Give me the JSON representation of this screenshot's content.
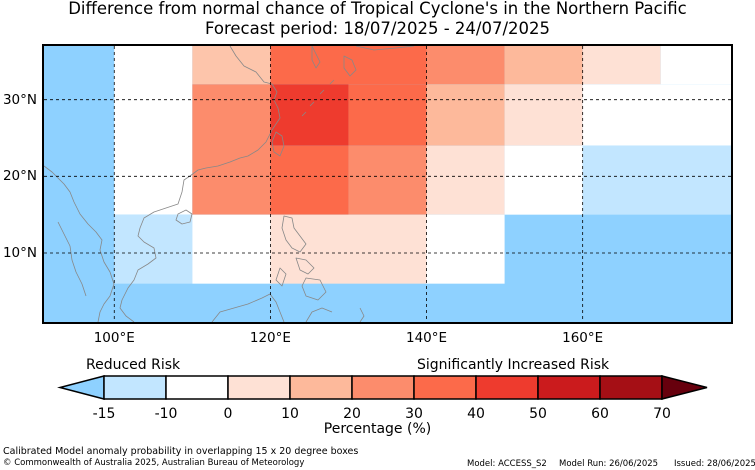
{
  "header": {
    "title": "Difference from normal chance of Tropical Cyclone's in the Northern Pacific",
    "subtitle": "Forecast period: 18/07/2025 - 24/07/2025"
  },
  "map": {
    "region": "Northern Pacific",
    "lon_range": [
      91,
      179
    ],
    "lat_range": [
      1,
      37
    ],
    "ocean_color": "#8ED1FF",
    "land_color": "#FFFFFF",
    "coastline_color": "#888888",
    "grid": "dashed",
    "lon_ticks": [
      {
        "value": 100,
        "label": "100°E"
      },
      {
        "value": 120,
        "label": "120°E"
      },
      {
        "value": 140,
        "label": "140°E"
      },
      {
        "value": 160,
        "label": "160°E"
      }
    ],
    "lat_ticks": [
      {
        "value": 30,
        "label": "30°N"
      },
      {
        "value": 20,
        "label": "20°N"
      },
      {
        "value": 10,
        "label": "10°N"
      }
    ],
    "anomaly_boxes": [
      {
        "lon": [
          100,
          110
        ],
        "lat": [
          15,
          37
        ],
        "color": "#FFFFFF"
      },
      {
        "lon": [
          110,
          120
        ],
        "lat": [
          32,
          37
        ],
        "color": "#FDC5AB"
      },
      {
        "lon": [
          120,
          140
        ],
        "lat": [
          32,
          37
        ],
        "color": "#FC6A4A"
      },
      {
        "lon": [
          140,
          150
        ],
        "lat": [
          32,
          37
        ],
        "color": "#FC8C6C"
      },
      {
        "lon": [
          150,
          160
        ],
        "lat": [
          32,
          37
        ],
        "color": "#FDB99B"
      },
      {
        "lon": [
          160,
          170
        ],
        "lat": [
          32,
          37
        ],
        "color": "#FEE1D5"
      },
      {
        "lon": [
          170,
          179
        ],
        "lat": [
          32,
          37
        ],
        "color": "#FFFFFF"
      },
      {
        "lon": [
          110,
          120
        ],
        "lat": [
          15,
          32
        ],
        "color": "#FC8C6C"
      },
      {
        "lon": [
          120,
          130
        ],
        "lat": [
          24,
          32
        ],
        "color": "#EE3B2E"
      },
      {
        "lon": [
          130,
          140
        ],
        "lat": [
          24,
          32
        ],
        "color": "#FC6A4A"
      },
      {
        "lon": [
          140,
          150
        ],
        "lat": [
          24,
          32
        ],
        "color": "#FDB99B"
      },
      {
        "lon": [
          150,
          160
        ],
        "lat": [
          24,
          32
        ],
        "color": "#FEE1D5"
      },
      {
        "lon": [
          160,
          179
        ],
        "lat": [
          24,
          32
        ],
        "color": "#FFFFFF"
      },
      {
        "lon": [
          120,
          130
        ],
        "lat": [
          15,
          24
        ],
        "color": "#FC6A4A"
      },
      {
        "lon": [
          130,
          140
        ],
        "lat": [
          15,
          24
        ],
        "color": "#FC8C6C"
      },
      {
        "lon": [
          140,
          150
        ],
        "lat": [
          15,
          24
        ],
        "color": "#FEE1D5"
      },
      {
        "lon": [
          150,
          160
        ],
        "lat": [
          15,
          24
        ],
        "color": "#FFFFFF"
      },
      {
        "lon": [
          160,
          179
        ],
        "lat": [
          15,
          24
        ],
        "color": "#C2E6FF"
      },
      {
        "lon": [
          100,
          110
        ],
        "lat": [
          6,
          15
        ],
        "color": "#C2E6FF"
      },
      {
        "lon": [
          110,
          120
        ],
        "lat": [
          6,
          15
        ],
        "color": "#FFFFFF"
      },
      {
        "lon": [
          120,
          140
        ],
        "lat": [
          6,
          15
        ],
        "color": "#FEE1D5"
      },
      {
        "lon": [
          140,
          150
        ],
        "lat": [
          6,
          15
        ],
        "color": "#FFFFFF"
      }
    ]
  },
  "legend": {
    "reduced_label": "Reduced Risk",
    "increased_label": "Significantly Increased Risk",
    "below_color": "#8ED1FF",
    "above_color": "#67000D",
    "bins": [
      {
        "color": "#C2E6FF"
      },
      {
        "color": "#FFFFFF"
      },
      {
        "color": "#FEE1D5"
      },
      {
        "color": "#FDB99B"
      },
      {
        "color": "#FC8C6C"
      },
      {
        "color": "#FC6A4A"
      },
      {
        "color": "#EE3B2E"
      },
      {
        "color": "#CB1B1D"
      },
      {
        "color": "#A50F15"
      }
    ],
    "ticks": [
      "-15",
      "-10",
      "0",
      "10",
      "20",
      "30",
      "40",
      "50",
      "60",
      "70"
    ],
    "label": "Percentage (%)"
  },
  "footer": {
    "description": "Calibrated Model anomaly probability in overlapping 15 x 20 degree boxes",
    "copyright": "© Commonwealth of Australia 2025, Australian Bureau of Meteorology",
    "model": "Model: ACCESS_S2",
    "model_run": "Model Run: 26/06/2025",
    "issued": "Issued: 28/06/2025"
  }
}
